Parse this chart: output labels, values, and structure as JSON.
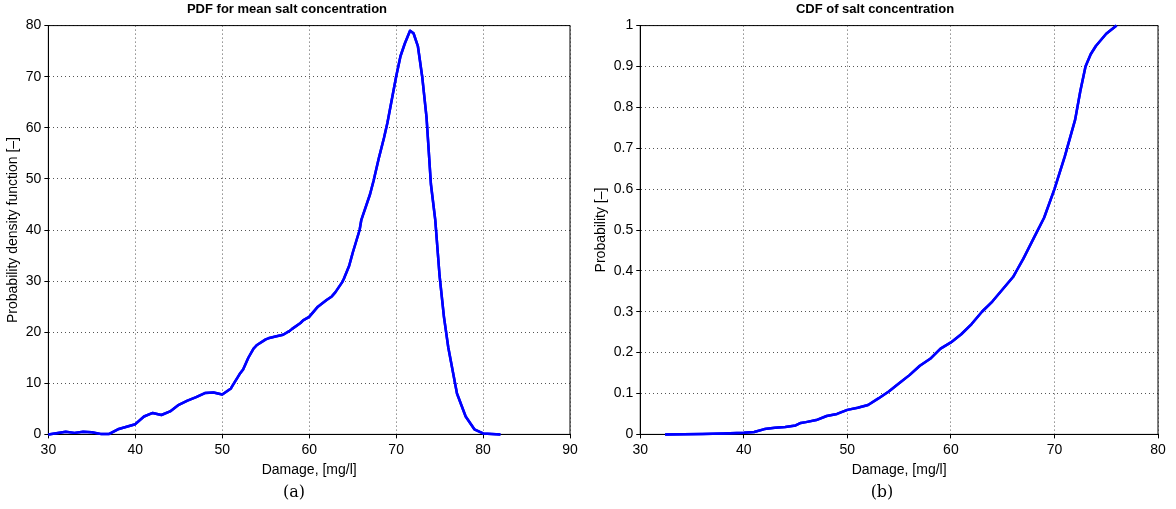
{
  "chart_data": [
    {
      "type": "line",
      "title": "PDF for mean salt concentration",
      "xlabel": "Damage, [mg/l]",
      "ylabel": "Probability density function [–]",
      "annotations": [
        "(a)"
      ],
      "series": [
        {
          "color": "#0000ff",
          "x": [
            30,
            32,
            33,
            34,
            35,
            36,
            37,
            38,
            39,
            40,
            41,
            42,
            43,
            44,
            45,
            46,
            47,
            48,
            49,
            50,
            51,
            51.2,
            52,
            52.4,
            53,
            53.6,
            54,
            55,
            55.3,
            56,
            57,
            57.7,
            58,
            59,
            59.3,
            60,
            61,
            62,
            62.6,
            63,
            63.8,
            64,
            64.6,
            65,
            65.8,
            66,
            67,
            67.4,
            68,
            68.6,
            69,
            70,
            70.5,
            71,
            71.6,
            72,
            72.5,
            73,
            73.5,
            74,
            74.5,
            75,
            75.5,
            76,
            77,
            78,
            79,
            80,
            81,
            82
          ],
          "values": [
            0,
            0.5,
            0.3,
            0.5,
            0.4,
            0.1,
            0.1,
            1,
            1.5,
            2,
            3.5,
            4.2,
            3.8,
            4.5,
            5.8,
            6.6,
            7.3,
            8.1,
            8.2,
            7.8,
            9,
            9.6,
            11.8,
            12.7,
            15,
            16.8,
            17.5,
            18.6,
            18.8,
            19.1,
            19.5,
            20.2,
            20.6,
            21.8,
            22.3,
            23,
            25,
            26.3,
            27,
            27.8,
            29.8,
            30.5,
            33,
            35.5,
            40,
            42,
            47,
            49.6,
            54,
            58,
            61,
            70,
            74,
            76.5,
            79,
            78.5,
            76,
            70,
            62,
            49,
            42,
            31,
            23,
            17,
            8,
            3.5,
            1,
            0.2,
            0.1,
            0
          ]
        }
      ],
      "xlim": [
        30,
        90
      ],
      "xticks": [
        30,
        40,
        50,
        60,
        70,
        80,
        90
      ],
      "ylim": [
        0,
        80
      ],
      "yticks": [
        0,
        10,
        20,
        30,
        40,
        50,
        60,
        70,
        80
      ],
      "grid": true,
      "legend": false,
      "line_style": "solid",
      "marker": "none"
    },
    {
      "type": "line",
      "title": "CDF of salt concentration",
      "xlabel": "Damage, [mg/l]",
      "ylabel": "Probability [–]",
      "annotations": [
        "(b)"
      ],
      "series": [
        {
          "color": "#0000ff",
          "x": [
            32.4,
            36,
            38,
            40,
            41,
            42,
            43,
            44,
            45,
            45.5,
            46,
            47,
            48,
            49,
            50,
            51,
            52,
            53,
            54,
            55,
            56,
            57,
            58,
            59,
            60,
            61,
            62,
            63,
            64,
            65,
            66,
            67,
            68,
            69,
            70,
            71,
            72,
            72.5,
            73,
            73.5,
            74,
            75,
            76
          ],
          "values": [
            0,
            0.001,
            0.002,
            0.004,
            0.006,
            0.013,
            0.016,
            0.018,
            0.022,
            0.028,
            0.03,
            0.035,
            0.045,
            0.05,
            0.06,
            0.065,
            0.072,
            0.088,
            0.105,
            0.125,
            0.145,
            0.168,
            0.185,
            0.21,
            0.225,
            0.245,
            0.27,
            0.3,
            0.325,
            0.355,
            0.385,
            0.43,
            0.48,
            0.53,
            0.6,
            0.68,
            0.77,
            0.84,
            0.9,
            0.93,
            0.95,
            0.98,
            1
          ]
        }
      ],
      "xlim": [
        30,
        80
      ],
      "xticks": [
        30,
        40,
        50,
        60,
        70,
        80
      ],
      "ylim": [
        0,
        1
      ],
      "yticks": [
        0,
        0.1,
        0.2,
        0.3,
        0.4,
        0.5,
        0.6,
        0.7,
        0.8,
        0.9,
        1
      ],
      "grid": true,
      "legend": false,
      "line_style": "solid",
      "marker": "none"
    }
  ]
}
